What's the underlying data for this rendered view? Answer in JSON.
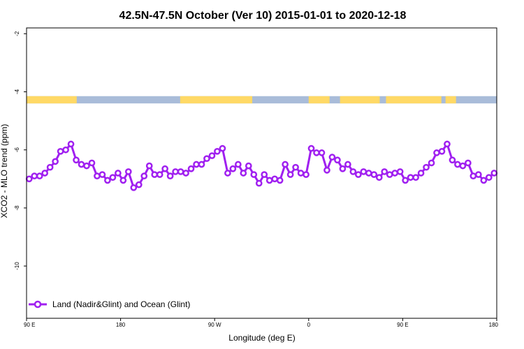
{
  "chart_data": {
    "type": "line",
    "title": "42.5N-47.5N October (Ver 10)   2015-01-01 to 2020-12-18",
    "xlabel": "Longitude (deg E)",
    "ylabel": "XCO2 - MLO trend (ppm)",
    "xlim": [
      90,
      540
    ],
    "ylim": [
      -11.8,
      -1.8
    ],
    "x_ticks": [
      {
        "value": 90,
        "label": "90 E"
      },
      {
        "value": 180,
        "label": "180"
      },
      {
        "value": 270,
        "label": "90 W"
      },
      {
        "value": 360,
        "label": "0"
      },
      {
        "value": 450,
        "label": "90 E"
      },
      {
        "value": 540,
        "label": "180"
      }
    ],
    "y_ticks": [
      {
        "value": -2,
        "label": "-2"
      },
      {
        "value": -4,
        "label": "-4"
      },
      {
        "value": -6,
        "label": "-6"
      },
      {
        "value": -8,
        "label": "-8"
      },
      {
        "value": -10,
        "label": "-10"
      }
    ],
    "land_ocean_strip": {
      "y_range": [
        -4.4,
        -4.15
      ],
      "land_color": "#ffd966",
      "ocean_color": "#a9bcd9",
      "land_segments": [
        [
          90,
          138
        ],
        [
          237,
          306
        ],
        [
          360,
          380
        ],
        [
          390,
          428
        ],
        [
          434,
          487
        ],
        [
          491,
          501
        ]
      ]
    },
    "series": [
      {
        "name": "Land (Nadir&Glint) and Ocean (Glint)",
        "color": "#a020f0",
        "x": [
          92.5,
          97.5,
          102.5,
          107.5,
          112.5,
          117.5,
          122.5,
          127.5,
          132.5,
          137.5,
          142.5,
          147.5,
          152.5,
          157.5,
          162.5,
          167.5,
          172.5,
          177.5,
          182.5,
          187.5,
          192.5,
          197.5,
          202.5,
          207.5,
          212.5,
          217.5,
          222.5,
          227.5,
          232.5,
          237.5,
          242.5,
          247.5,
          252.5,
          257.5,
          262.5,
          267.5,
          272.5,
          277.5,
          282.5,
          287.5,
          292.5,
          297.5,
          302.5,
          307.5,
          312.5,
          317.5,
          322.5,
          327.5,
          332.5,
          337.5,
          342.5,
          347.5,
          352.5,
          357.5,
          362.5,
          367.5,
          372.5,
          377.5,
          382.5,
          387.5,
          392.5,
          397.5,
          402.5,
          407.5,
          412.5,
          417.5,
          422.5,
          427.5,
          432.5,
          437.5,
          442.5,
          447.5,
          452.5,
          457.5,
          462.5,
          467.5,
          472.5,
          477.5,
          482.5,
          487.5,
          492.5,
          497.5,
          502.5,
          507.5,
          512.5,
          517.5,
          522.5,
          527.5,
          532.5,
          537.5
        ],
        "values": [
          -7.0,
          -6.9,
          -6.9,
          -6.8,
          -6.6,
          -6.4,
          -6.05,
          -6.0,
          -5.8,
          -6.35,
          -6.5,
          -6.55,
          -6.45,
          -6.9,
          -6.85,
          -7.05,
          -6.95,
          -6.8,
          -7.05,
          -6.75,
          -7.3,
          -7.2,
          -6.9,
          -6.55,
          -6.85,
          -6.85,
          -6.65,
          -6.9,
          -6.75,
          -6.75,
          -6.8,
          -6.65,
          -6.5,
          -6.5,
          -6.3,
          -6.2,
          -6.05,
          -5.95,
          -6.8,
          -6.65,
          -6.5,
          -6.8,
          -6.55,
          -6.85,
          -7.15,
          -6.85,
          -7.05,
          -7.0,
          -7.05,
          -6.5,
          -6.85,
          -6.6,
          -6.8,
          -6.85,
          -5.95,
          -6.1,
          -6.1,
          -6.7,
          -6.25,
          -6.35,
          -6.65,
          -6.5,
          -6.75,
          -6.85,
          -6.75,
          -6.8,
          -6.85,
          -6.95,
          -6.75,
          -6.85,
          -6.8,
          -6.75,
          -7.05,
          -6.95,
          -6.95,
          -6.8,
          -6.6,
          -6.45,
          -6.1,
          -6.05,
          -5.8,
          -6.35,
          -6.5,
          -6.55,
          -6.45,
          -6.9,
          -6.85,
          -7.05,
          -6.95,
          -6.8
        ]
      }
    ],
    "legend_position": "bottom-left",
    "grid": false
  }
}
